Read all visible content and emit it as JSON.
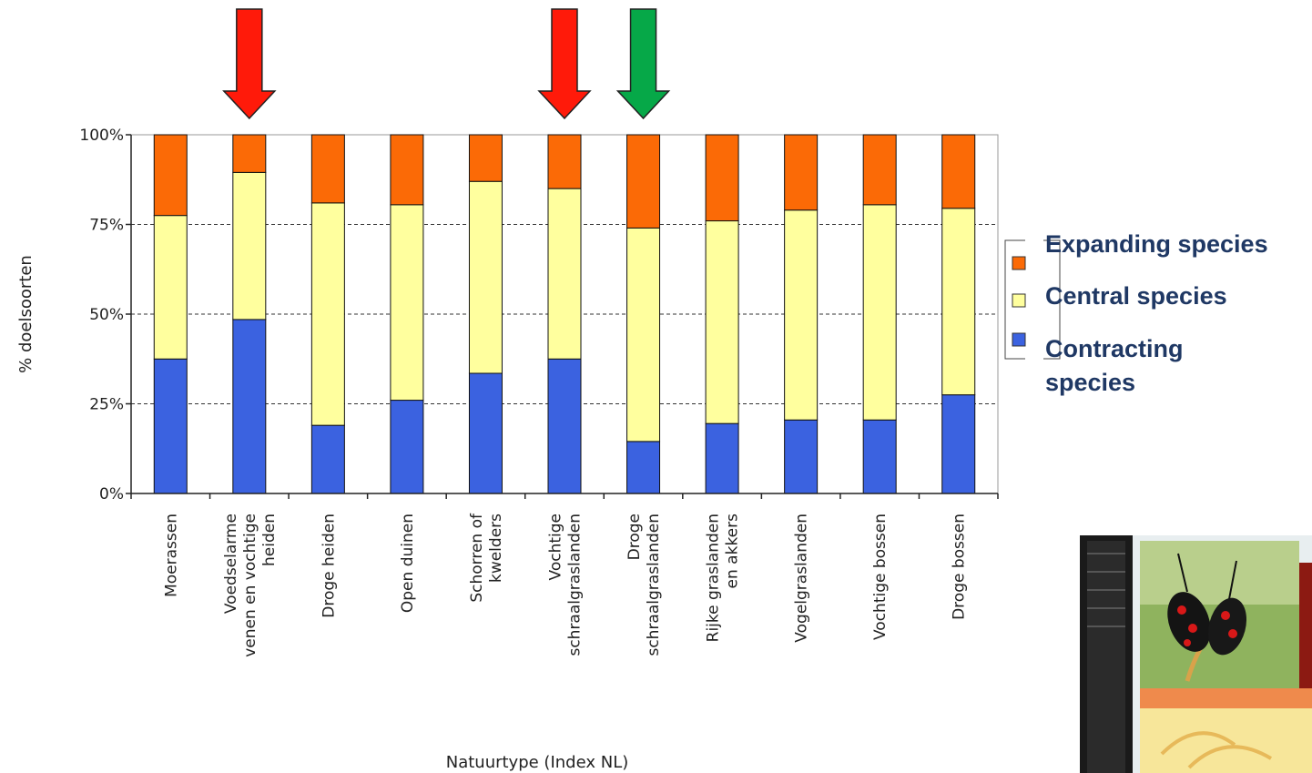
{
  "chart_data": {
    "type": "bar",
    "stacked": true,
    "ylabel": "% doelsoorten",
    "xlabel": "Natuurtype (Index NL)",
    "yticks": [
      "0%",
      "25%",
      "50%",
      "75%",
      "100%"
    ],
    "ylim": [
      0,
      100
    ],
    "grid": "horizontal dashed at 25% steps",
    "legend_position": "right",
    "categories": [
      [
        "Moerassen"
      ],
      [
        "Voedselarme",
        "venen en vochtige",
        "heiden"
      ],
      [
        "Droge heiden"
      ],
      [
        "Open duinen"
      ],
      [
        "Schorren of",
        "kwelders"
      ],
      [
        "Vochtige",
        "schraalgraslanden"
      ],
      [
        "Droge",
        "schraalgraslanden"
      ],
      [
        "Rijke graslanden",
        "en akkers"
      ],
      [
        "Vogelgraslanden"
      ],
      [
        "Vochtige bossen"
      ],
      [
        "Droge bossen"
      ]
    ],
    "series": [
      {
        "name": "Contracting species",
        "color": "#3b62e0",
        "values": [
          37.5,
          48.5,
          19,
          26,
          33.5,
          37.5,
          14.5,
          19.5,
          20.5,
          20.5,
          27.5
        ]
      },
      {
        "name": "Central species",
        "color": "#ffff9e",
        "values": [
          40,
          41,
          62,
          54.5,
          53.5,
          47.5,
          59.5,
          56.5,
          58.5,
          60,
          52
        ]
      },
      {
        "name": "Expanding species",
        "color": "#fb6a06",
        "values": [
          22.5,
          10.5,
          19,
          19.5,
          13,
          15,
          26,
          24,
          21,
          19.5,
          20.5
        ]
      }
    ],
    "legend": [
      {
        "label": "Expanding species",
        "color": "#fb6a06"
      },
      {
        "label": "Central species",
        "color": "#ffff9e"
      },
      {
        "label": "Contracting",
        "label2": "species",
        "color": "#3b62e0"
      }
    ],
    "arrows": [
      {
        "category_index": 1,
        "color": "#ff1a0a"
      },
      {
        "category_index": 5,
        "color": "#ff1a0a"
      },
      {
        "category_index": 6,
        "color": "#06a848"
      }
    ]
  }
}
